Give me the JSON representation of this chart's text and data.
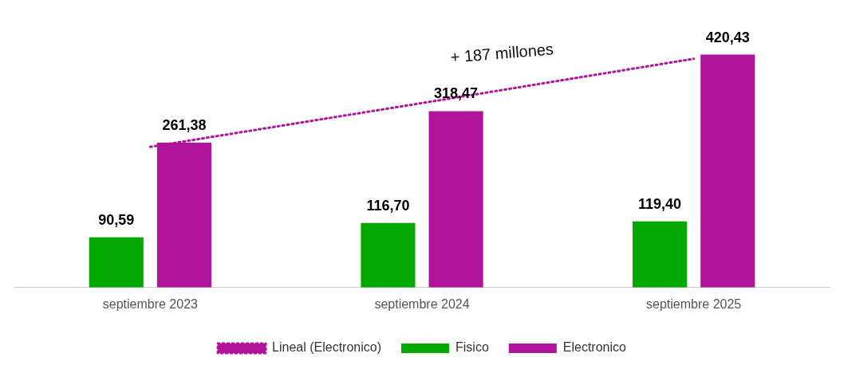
{
  "chart_data": {
    "type": "bar",
    "categories": [
      "septiembre 2023",
      "septiembre 2024",
      "septiembre 2025"
    ],
    "series": [
      {
        "name": "Fisico",
        "color": "#00a800",
        "values": [
          90.59,
          116.7,
          119.4
        ],
        "value_labels": [
          "90,59",
          "116,70",
          "119,40"
        ]
      },
      {
        "name": "Electronico",
        "color": "#b0149b",
        "values": [
          261.38,
          318.47,
          420.43
        ],
        "value_labels": [
          "261,38",
          "318,47",
          "420,43"
        ]
      },
      {
        "name": "Lineal (Electronico)",
        "type": "line",
        "color": "#b0149b",
        "line_style": "dotted",
        "marker": "none",
        "values": [
          254,
          333,
          413
        ]
      }
    ],
    "annotations": [
      "+ 187 millones"
    ],
    "legend": "bottom",
    "grid": false
  }
}
